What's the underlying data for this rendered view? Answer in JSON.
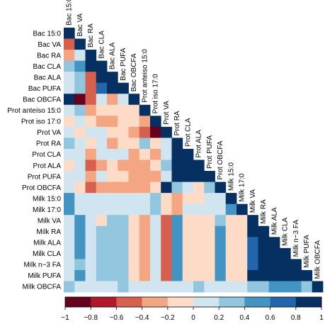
{
  "chart_data": {
    "type": "heatmap",
    "shape": "lower-triangular correlation matrix",
    "variables": [
      "Bac 15:0",
      "Bac VA",
      "Bac RA",
      "Bac CLA",
      "Bac ALA",
      "Bac PUFA",
      "Bac OBCFA",
      "Prot anteiso 15:0",
      "Prot iso 17:0",
      "Prot VA",
      "Prot RA",
      "Prot CLA",
      "Prot ALA",
      "Prot PUFA",
      "Prot OBCFA",
      "Milk 15:0",
      "Milk 17:0",
      "Milk VA",
      "Milk RA",
      "Milk ALA",
      "Milk CLA",
      "Milk n−3 FA",
      "Milk PUFA",
      "Milk OBCFA"
    ],
    "correlations": [
      [
        1
      ],
      [
        -0.6,
        1
      ],
      [
        -0.3,
        0.1,
        1
      ],
      [
        0.3,
        0.5,
        0.9,
        1
      ],
      [
        0.1,
        0.3,
        -0.6,
        0.9,
        1
      ],
      [
        0.1,
        0.3,
        -0.6,
        0.7,
        0.9,
        1
      ],
      [
        0.9,
        -0.9,
        -0.5,
        0.1,
        -0.3,
        0.1,
        1
      ],
      [
        0.1,
        0.3,
        -0.3,
        -0.1,
        -0.1,
        -0.1,
        -0.1,
        1
      ],
      [
        -0.1,
        0.1,
        -0.1,
        -0.3,
        -0.3,
        -0.1,
        -0.1,
        -0.3,
        1
      ],
      [
        0.1,
        -0.1,
        0.1,
        0.1,
        -0.1,
        -0.1,
        -0.3,
        -0.5,
        -0.9,
        1
      ],
      [
        0.3,
        0.1,
        -0.1,
        0.1,
        -0.3,
        -0.1,
        -0.1,
        0.3,
        -0.1,
        0.1,
        1
      ],
      [
        0.1,
        0.1,
        -0.3,
        0.1,
        0.1,
        0.1,
        -0.3,
        -0.1,
        -0.3,
        0.1,
        0.9,
        1
      ],
      [
        -0.1,
        0.1,
        -0.5,
        -0.3,
        -0.1,
        -0.3,
        -0.3,
        -0.3,
        -0.1,
        0.3,
        0.9,
        0.9,
        1
      ],
      [
        0.1,
        0.1,
        -0.3,
        0.1,
        -0.1,
        -0.1,
        -0.3,
        -0.3,
        -0.3,
        0.1,
        0.9,
        0.9,
        0.9,
        1
      ],
      [
        0.1,
        -0.1,
        -0.5,
        -0.3,
        -0.3,
        -0.3,
        -0.3,
        -0.3,
        -0.1,
        0.9,
        0.3,
        0.1,
        -0.1,
        0.3,
        1
      ],
      [
        0.5,
        0.1,
        0.1,
        0.1,
        0.1,
        0.1,
        0.1,
        0.1,
        0.3,
        -0.1,
        -0.3,
        -0.1,
        -0.1,
        0.1,
        0.1,
        1
      ],
      [
        0.5,
        0.1,
        0.1,
        0.1,
        0.1,
        0.1,
        0.1,
        0.1,
        0.3,
        -0.1,
        -0.3,
        0.1,
        0.1,
        0.1,
        0.1,
        0.5,
        1
      ],
      [
        0.1,
        0.5,
        0.1,
        -0.1,
        0.3,
        0.3,
        -0.1,
        -0.3,
        0.1,
        -0.5,
        0.5,
        -0.1,
        -0.1,
        -0.1,
        0.3,
        -0.1,
        -0.1,
        1
      ],
      [
        0.1,
        0.5,
        0.1,
        0.3,
        0.3,
        0.3,
        -0.1,
        -0.3,
        0.1,
        -0.5,
        0.5,
        -0.1,
        -0.1,
        -0.1,
        0.5,
        -0.1,
        -0.1,
        0.9,
        1
      ],
      [
        0.1,
        0.5,
        0.1,
        0.3,
        0.3,
        0.3,
        -0.1,
        -0.3,
        0.1,
        -0.5,
        0.5,
        -0.1,
        -0.1,
        -0.1,
        0.5,
        -0.1,
        -0.1,
        0.7,
        0.9,
        1
      ],
      [
        0.1,
        0.5,
        0.1,
        0.3,
        0.3,
        0.3,
        -0.1,
        -0.3,
        0.1,
        -0.5,
        0.5,
        -0.1,
        -0.1,
        -0.1,
        0.5,
        -0.1,
        -0.1,
        0.7,
        0.9,
        0.9,
        1
      ],
      [
        0.1,
        0.3,
        0.1,
        0.3,
        0.3,
        0.3,
        -0.1,
        -0.3,
        0.1,
        -0.5,
        0.5,
        -0.1,
        -0.1,
        -0.1,
        0.5,
        -0.1,
        -0.1,
        0.7,
        0.9,
        0.9,
        0.9,
        1
      ],
      [
        0.1,
        0.5,
        0.1,
        0.3,
        0.3,
        0.3,
        -0.1,
        -0.3,
        0.1,
        -0.5,
        0.5,
        -0.1,
        -0.1,
        -0.1,
        0.5,
        -0.1,
        -0.1,
        0.9,
        0.9,
        0.9,
        0.9,
        0.9,
        1
      ],
      [
        0.3,
        0.1,
        0.1,
        0.1,
        0.1,
        0.3,
        0.1,
        0.1,
        0.1,
        0.1,
        0.1,
        0.1,
        0.3,
        0.1,
        0.1,
        0.1,
        0.1,
        0.3,
        0.3,
        0.5,
        0.5,
        0.5,
        0.3,
        1
      ]
    ],
    "colorbar": {
      "range": [
        -1,
        1
      ],
      "ticks": [
        "−1",
        "−0.8",
        "−0.6",
        "−0.4",
        "−0.2",
        "0",
        "0.2",
        "0.4",
        "0.6",
        "0.8",
        "1"
      ],
      "bin_width": 0.2,
      "colors": [
        "#67001f",
        "#b2182b",
        "#d6604d",
        "#f4a582",
        "#fddbc7",
        "#d1e5f0",
        "#92c5de",
        "#4393c3",
        "#2166ac",
        "#053061"
      ]
    }
  }
}
